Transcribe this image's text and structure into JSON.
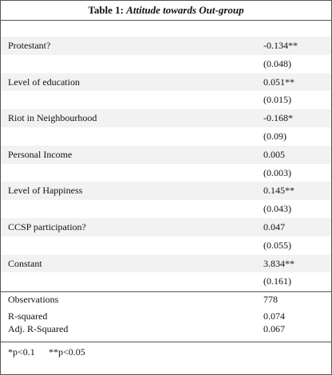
{
  "table": {
    "title": {
      "prefix": "Table 1:",
      "text": "Attitude towards Out-group"
    },
    "rows": [
      {
        "label": "Protestant?",
        "coef": "-0.134**",
        "se": "(0.048)"
      },
      {
        "label": "Level of education",
        "coef": "0.051**",
        "se": "(0.015)"
      },
      {
        "label": "Riot in Neighbourhood",
        "coef": "-0.168*",
        "se": "(0.09)"
      },
      {
        "label": "Personal Income",
        "coef": "0.005",
        "se": "(0.003)"
      },
      {
        "label": "Level of Happiness",
        "coef": "0.145**",
        "se": "(0.043)"
      },
      {
        "label": "CCSP participation?",
        "coef": "0.047",
        "se": "(0.055)"
      },
      {
        "label": "Constant",
        "coef": "3.834**",
        "se": "(0.161)"
      }
    ],
    "stats": [
      {
        "label": "Observations",
        "value": "778"
      },
      {
        "label": "R-squared",
        "value": "0.074"
      },
      {
        "label": "Adj. R-Squared",
        "value": "0.067"
      }
    ],
    "footnote": [
      "*p<0.1",
      "**p<0.05"
    ]
  }
}
